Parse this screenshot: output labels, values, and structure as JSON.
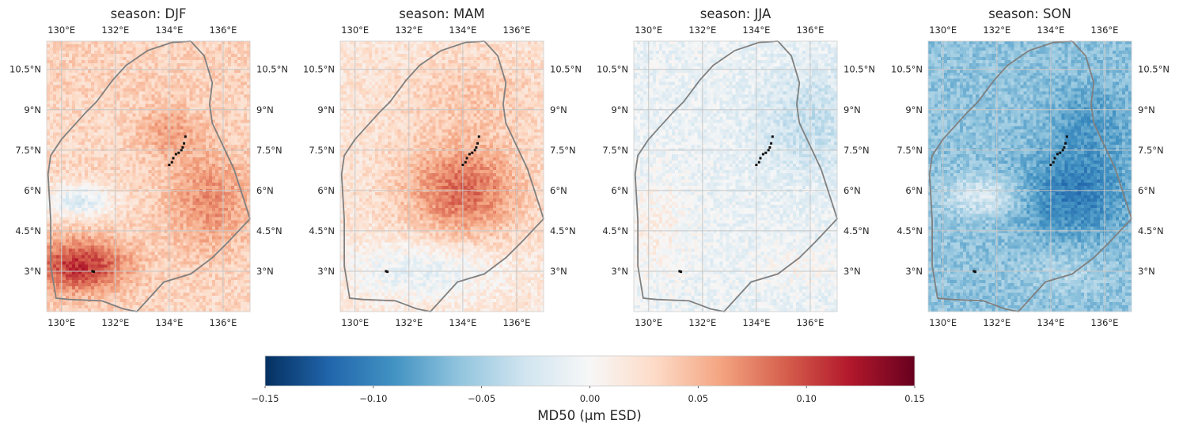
{
  "chart_data": {
    "type": "heatmap",
    "colormap": "RdBu_r",
    "panels": [
      {
        "title": "season: DJF",
        "pattern": "positive_south_max"
      },
      {
        "title": "season: MAM",
        "pattern": "positive_center_max"
      },
      {
        "title": "season: JJA",
        "pattern": "near_zero"
      },
      {
        "title": "season: SON",
        "pattern": "negative_center_min"
      }
    ],
    "lon_ticks": [
      "130°E",
      "132°E",
      "134°E",
      "136°E"
    ],
    "lat_ticks": [
      "10.5°N",
      "9°N",
      "7.5°N",
      "6°N",
      "4.5°N",
      "3°N"
    ],
    "lon_values": [
      130,
      132,
      134,
      136
    ],
    "lat_values": [
      10.5,
      9,
      7.5,
      6,
      4.5,
      3
    ],
    "lon_range": [
      129.45,
      137.0
    ],
    "lat_range": [
      1.5,
      11.55
    ],
    "colorbar": {
      "label": "MD50 (µm ESD)",
      "ticks": [
        "−0.15",
        "−0.10",
        "−0.05",
        "0.00",
        "0.05",
        "0.10",
        "0.15"
      ],
      "tick_values": [
        -0.15,
        -0.1,
        -0.05,
        0.0,
        0.05,
        0.1,
        0.15
      ],
      "range": [
        -0.15,
        0.15
      ]
    },
    "boundary_color": "#808080",
    "gridlines": true
  }
}
